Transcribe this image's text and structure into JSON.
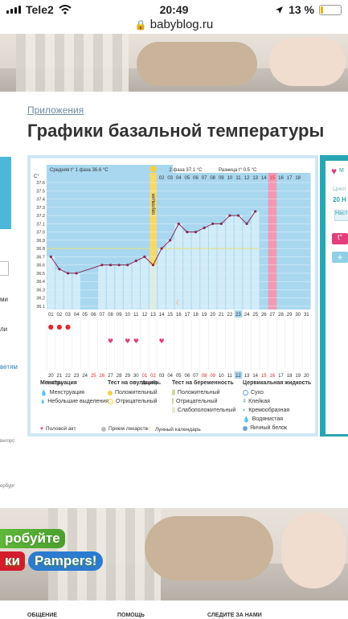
{
  "status": {
    "carrier": "Tele2",
    "time": "20:49",
    "battery": "13 %",
    "battery_level": 0.13
  },
  "url": {
    "host": "babyblog.ru"
  },
  "page": {
    "breadcrumb": "Приложения",
    "title": "Графики базальной температуры"
  },
  "promo": {
    "line1": "робуйте",
    "line2_red": "ки",
    "brand": "Pampers!"
  },
  "left_fragments": [
    "ми",
    "ли",
    "ветям",
    "внгорс",
    "ербург"
  ],
  "right_panel": {
    "text1": "М",
    "text2": "Цикл",
    "text3": "20 Н",
    "btn": "Наст",
    "t_button": "t°",
    "plus_button": "+"
  },
  "footer": {
    "col1": "ОБЩЕНИЕ",
    "col2": "ПОМОЩЬ",
    "col3": "СЛЕДИТЕ ЗА НАМИ"
  },
  "chart_data": {
    "type": "line",
    "y_unit": "С°",
    "header": {
      "phase1": "Средняя t° 1 фаза  36.6 °С",
      "phase2": "2 фаза  37.1 °С",
      "diff": "Разница t°  0.5 °С"
    },
    "ovulation_label": "овуляция",
    "y_ticks": [
      "37.6",
      "37.5",
      "37.4",
      "37.3",
      "37.2",
      "37.1",
      "37.0",
      "36.9",
      "36.8",
      "36.7",
      "36.6",
      "36.5",
      "36.4",
      "36.3",
      "36.2",
      "36.1"
    ],
    "ylim": [
      36.1,
      37.6
    ],
    "cycle_days": [
      "01",
      "02",
      "03",
      "04",
      "05",
      "06",
      "07",
      "08",
      "09",
      "10",
      "11",
      "12",
      "13",
      "14",
      "15",
      "16",
      "17",
      "18",
      "19",
      "20",
      "21",
      "22",
      "23",
      "24",
      "25",
      "26",
      "27",
      "28",
      "29",
      "30",
      "31"
    ],
    "top_days": [
      "01",
      "02",
      "03",
      "04",
      "05",
      "06",
      "07",
      "08",
      "09",
      "10",
      "11",
      "12",
      "13",
      "14",
      "15",
      "16",
      "17",
      "18"
    ],
    "highlighted_day": "23",
    "pink_day": "15",
    "dates": [
      "20",
      "21",
      "22",
      "23",
      "24",
      "25",
      "26",
      "27",
      "28",
      "29",
      "30",
      "01",
      "02",
      "03",
      "04",
      "05",
      "06",
      "07",
      "08",
      "09",
      "10",
      "11",
      "12",
      "13",
      "14",
      "15",
      "16",
      "17",
      "18",
      "19",
      "20"
    ],
    "weekend_dates": [
      "25",
      "26",
      "01",
      "02",
      "08",
      "09",
      "15",
      "16"
    ],
    "highlighted_date": "12",
    "month_nov": "Ноябрь",
    "month_dec": "Декабрь",
    "temps": [
      {
        "day": 1,
        "t": 36.7
      },
      {
        "day": 2,
        "t": 36.55
      },
      {
        "day": 3,
        "t": 36.5
      },
      {
        "day": 4,
        "t": 36.5
      },
      {
        "day": 7,
        "t": 36.6
      },
      {
        "day": 8,
        "t": 36.6
      },
      {
        "day": 9,
        "t": 36.6
      },
      {
        "day": 10,
        "t": 36.6
      },
      {
        "day": 11,
        "t": 36.65
      },
      {
        "day": 12,
        "t": 36.7
      },
      {
        "day": 13,
        "t": 36.6
      },
      {
        "day": 14,
        "t": 36.8
      },
      {
        "day": 15,
        "t": 36.9
      },
      {
        "day": 16,
        "t": 37.1
      },
      {
        "day": 17,
        "t": 37.0
      },
      {
        "day": 18,
        "t": 37.0
      },
      {
        "day": 19,
        "t": 37.05
      },
      {
        "day": 20,
        "t": 37.1
      },
      {
        "day": 21,
        "t": 37.1
      },
      {
        "day": 22,
        "t": 37.2
      },
      {
        "day": 23,
        "t": 37.2
      },
      {
        "day": 24,
        "t": 37.1
      },
      {
        "day": 25,
        "t": 37.25
      }
    ],
    "ovulation_day": 13,
    "coverline": 36.8,
    "menstruation_days": [
      1,
      2,
      3
    ],
    "intercourse_days": [
      8,
      10,
      11,
      14
    ],
    "moon_day": 16,
    "legend": {
      "col1": {
        "title": "Менструация",
        "items": [
          "Менструация",
          "Небольшие выделения"
        ]
      },
      "col2": {
        "title": "Тест на овуляцию",
        "items": [
          "Положительный",
          "Отрицательный"
        ]
      },
      "col3": {
        "title": "Тест на беременность",
        "items": [
          "Положительный",
          "Отрицательный",
          "Слабоположительный"
        ]
      },
      "col4": {
        "title": "Цервикальная жидкость",
        "items": [
          "Сухо",
          "Клейкая",
          "Кремообразная",
          "Водянистая",
          "Яичный белок"
        ]
      },
      "bottom": [
        "Половой акт",
        "Прием лекарств",
        "Лунный календарь"
      ]
    }
  }
}
